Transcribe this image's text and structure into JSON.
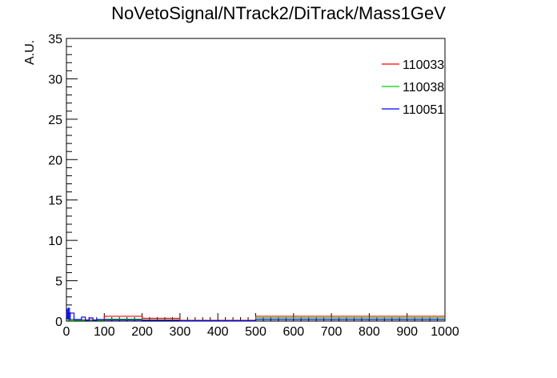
{
  "chart_data": {
    "type": "line",
    "style": "step-histogram",
    "title": "NoVetoSignal/NTrack2/DiTrack/Mass1GeV",
    "xlabel": "",
    "ylabel": "A.U.",
    "xlim": [
      0,
      1000
    ],
    "ylim": [
      0,
      35
    ],
    "x_ticks": [
      0,
      100,
      200,
      300,
      400,
      500,
      600,
      700,
      800,
      900,
      1000
    ],
    "y_ticks": [
      0,
      5,
      10,
      15,
      20,
      25,
      30,
      35
    ],
    "grid": false,
    "legend_position": "top-right",
    "series": [
      {
        "name": "110033",
        "color": "#ff0000",
        "bins": [
          [
            0,
            5,
            1.0
          ],
          [
            5,
            10,
            0.1
          ],
          [
            10,
            20,
            0.2
          ],
          [
            20,
            100,
            0.15
          ],
          [
            100,
            200,
            0.6
          ],
          [
            200,
            300,
            0.35
          ],
          [
            300,
            500,
            0.1
          ],
          [
            500,
            1000,
            0.6
          ]
        ]
      },
      {
        "name": "110038",
        "color": "#00cc00",
        "bins": [
          [
            0,
            5,
            0.8
          ],
          [
            5,
            10,
            0.1
          ],
          [
            10,
            20,
            0.15
          ],
          [
            20,
            100,
            0.1
          ],
          [
            100,
            200,
            0.25
          ],
          [
            200,
            300,
            0.15
          ],
          [
            300,
            500,
            0.05
          ],
          [
            500,
            1000,
            0.4
          ]
        ]
      },
      {
        "name": "110051",
        "color": "#0000ff",
        "bins": [
          [
            0,
            2,
            1.5
          ],
          [
            2,
            5,
            0.3
          ],
          [
            5,
            8,
            1.6
          ],
          [
            8,
            10,
            0.2
          ],
          [
            10,
            20,
            1.0
          ],
          [
            20,
            40,
            0.2
          ],
          [
            40,
            50,
            0.5
          ],
          [
            50,
            60,
            0.1
          ],
          [
            60,
            70,
            0.4
          ],
          [
            70,
            80,
            0.1
          ],
          [
            80,
            100,
            0.2
          ],
          [
            100,
            200,
            0.15
          ],
          [
            200,
            300,
            0.1
          ],
          [
            300,
            500,
            0.05
          ],
          [
            500,
            1000,
            0.2
          ]
        ]
      }
    ]
  }
}
